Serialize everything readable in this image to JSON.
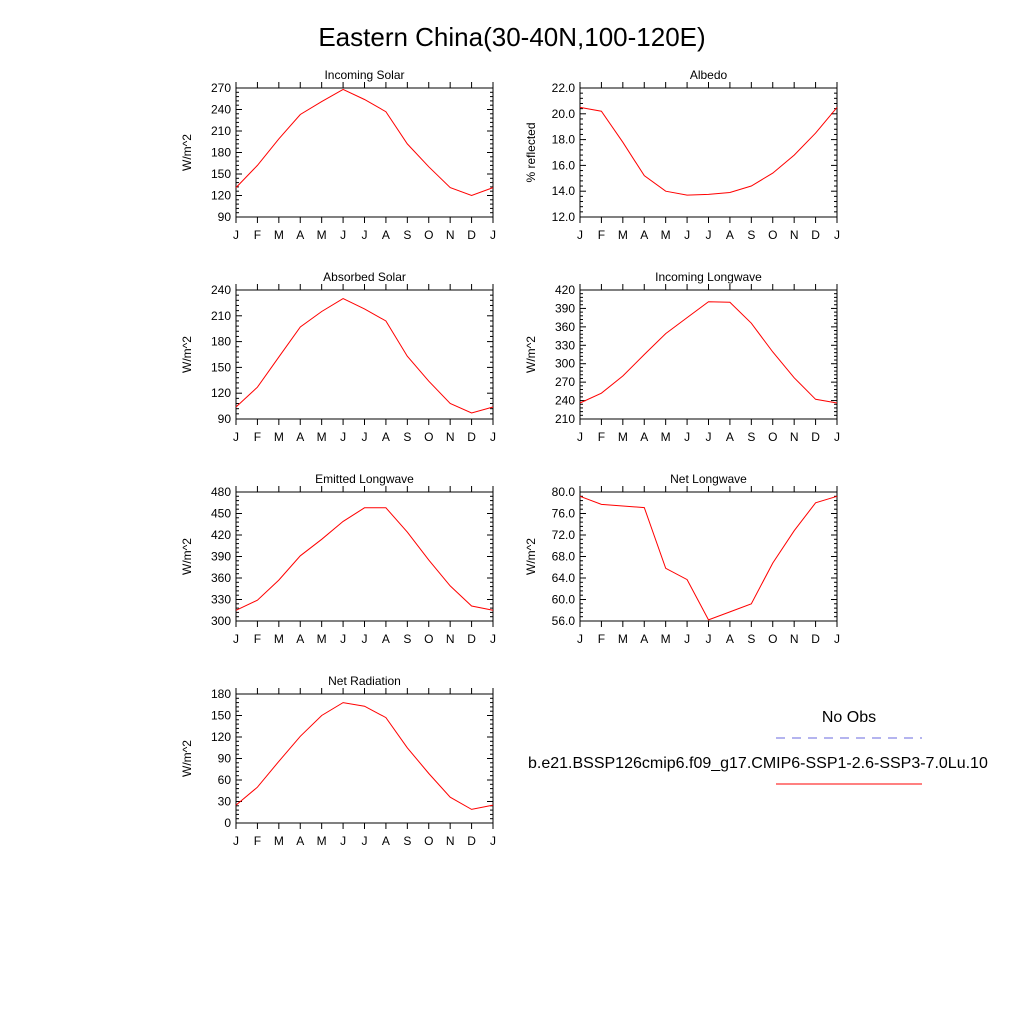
{
  "title": "Eastern China(30-40N,100-120E)",
  "months": [
    "J",
    "F",
    "M",
    "A",
    "M",
    "J",
    "J",
    "A",
    "S",
    "O",
    "N",
    "D",
    "J"
  ],
  "legend": {
    "obs_label": "No Obs",
    "model_label": "b.e21.BSSP126cmip6.f09_g17.CMIP6-SSP1-2.6-SSP3-7.0Lu.10",
    "obs_color": "#6a6adf",
    "model_color": "#ff0000"
  },
  "chart_data": [
    {
      "type": "line",
      "title": "Incoming Solar",
      "ylabel": "W/m^2",
      "ylim": [
        90,
        270
      ],
      "yticks": [
        "90",
        "120",
        "150",
        "180",
        "210",
        "240",
        "270"
      ],
      "x": [
        "J",
        "F",
        "M",
        "A",
        "M",
        "J",
        "J",
        "A",
        "S",
        "O",
        "N",
        "D",
        "J"
      ],
      "series": [
        {
          "values": [
            131,
            162,
            199,
            233,
            251,
            268,
            254,
            237,
            192,
            160,
            131,
            120,
            131
          ]
        }
      ]
    },
    {
      "type": "line",
      "title": "Albedo",
      "ylabel": "% reflected",
      "ylim": [
        12.0,
        22.0
      ],
      "yticks": [
        "12.0",
        "14.0",
        "16.0",
        "18.0",
        "20.0",
        "22.0"
      ],
      "x": [
        "J",
        "F",
        "M",
        "A",
        "M",
        "J",
        "J",
        "A",
        "S",
        "O",
        "N",
        "D",
        "J"
      ],
      "series": [
        {
          "values": [
            20.5,
            20.2,
            17.8,
            15.2,
            14.0,
            13.7,
            13.75,
            13.9,
            14.4,
            15.4,
            16.8,
            18.5,
            20.5
          ]
        }
      ]
    },
    {
      "type": "line",
      "title": "Absorbed Solar",
      "ylabel": "W/m^2",
      "ylim": [
        90,
        240
      ],
      "yticks": [
        "90",
        "120",
        "150",
        "180",
        "210",
        "240"
      ],
      "x": [
        "J",
        "F",
        "M",
        "A",
        "M",
        "J",
        "J",
        "A",
        "S",
        "O",
        "N",
        "D",
        "J"
      ],
      "series": [
        {
          "values": [
            104,
            127,
            162,
            197,
            215,
            230,
            218,
            204,
            163,
            134,
            108,
            97,
            104
          ]
        }
      ]
    },
    {
      "type": "line",
      "title": "Incoming Longwave",
      "ylabel": "W/m^2",
      "ylim": [
        210,
        420
      ],
      "yticks": [
        "210",
        "240",
        "270",
        "300",
        "330",
        "360",
        "390",
        "420"
      ],
      "x": [
        "J",
        "F",
        "M",
        "A",
        "M",
        "J",
        "J",
        "A",
        "S",
        "O",
        "N",
        "D",
        "J"
      ],
      "series": [
        {
          "values": [
            236,
            252,
            280,
            315,
            349,
            375,
            401,
            400,
            366,
            319,
            277,
            242,
            236
          ]
        }
      ]
    },
    {
      "type": "line",
      "title": "Emitted Longwave",
      "ylabel": "W/m^2",
      "ylim": [
        300,
        480
      ],
      "yticks": [
        "300",
        "330",
        "360",
        "390",
        "420",
        "450",
        "480"
      ],
      "x": [
        "J",
        "F",
        "M",
        "A",
        "M",
        "J",
        "J",
        "A",
        "S",
        "O",
        "N",
        "D",
        "J"
      ],
      "series": [
        {
          "values": [
            315,
            329,
            357,
            391,
            414,
            439,
            458,
            458,
            424,
            385,
            349,
            321,
            315
          ]
        }
      ]
    },
    {
      "type": "line",
      "title": "Net Longwave",
      "ylabel": "W/m^2",
      "ylim": [
        56.0,
        80.0
      ],
      "yticks": [
        "56.0",
        "60.0",
        "64.0",
        "68.0",
        "72.0",
        "76.0",
        "80.0"
      ],
      "x": [
        "J",
        "F",
        "M",
        "A",
        "M",
        "J",
        "J",
        "A",
        "S",
        "O",
        "N",
        "D",
        "J"
      ],
      "series": [
        {
          "values": [
            79.2,
            77.7,
            77.4,
            77.1,
            65.8,
            63.7,
            56.2,
            57.7,
            59.2,
            66.8,
            72.8,
            78.0,
            79.2
          ]
        }
      ]
    },
    {
      "type": "line",
      "title": "Net Radiation",
      "ylabel": "W/m^2",
      "ylim": [
        0,
        180
      ],
      "yticks": [
        "0",
        "30",
        "60",
        "90",
        "120",
        "150",
        "180"
      ],
      "x": [
        "J",
        "F",
        "M",
        "A",
        "M",
        "J",
        "J",
        "A",
        "S",
        "O",
        "N",
        "D",
        "J"
      ],
      "series": [
        {
          "values": [
            25,
            50,
            86,
            121,
            150,
            168,
            163,
            147,
            105,
            69,
            36,
            19,
            25
          ]
        }
      ]
    }
  ]
}
